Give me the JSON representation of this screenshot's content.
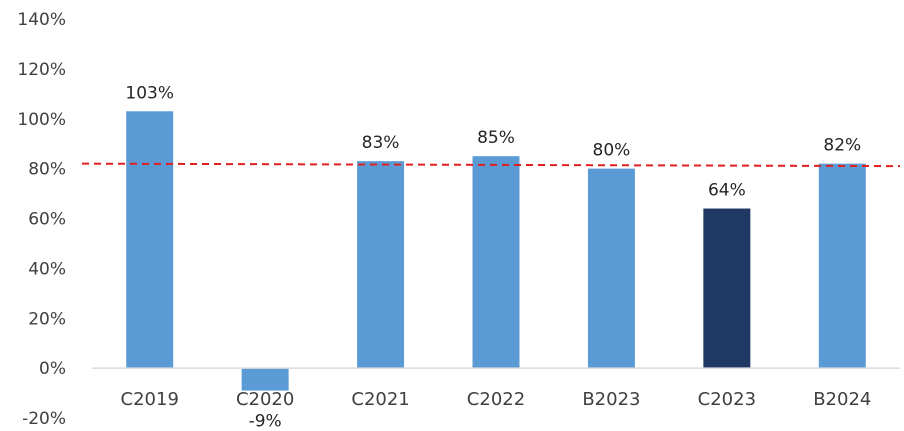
{
  "chart_data": {
    "type": "bar",
    "title": "",
    "xlabel": "",
    "ylabel": "",
    "categories": [
      "C2019",
      "C2020",
      "C2021",
      "C2022",
      "B2023",
      "C2023",
      "B2024"
    ],
    "values": [
      103,
      -9,
      83,
      85,
      80,
      64,
      82
    ],
    "data_labels": [
      "103%",
      "-9%",
      "83%",
      "85%",
      "80%",
      "64%",
      "82%"
    ],
    "y_ticks": [
      -20,
      0,
      20,
      40,
      60,
      80,
      100,
      120,
      140
    ],
    "y_tick_labels": [
      "-20%",
      "0%",
      "20%",
      "40%",
      "60%",
      "80%",
      "100%",
      "120%",
      "140%"
    ],
    "ylim": [
      -20,
      140
    ],
    "grid": false,
    "legend": "none",
    "reference_line": {
      "style": "dashed",
      "color": "#e02020",
      "start_value": 82,
      "end_value": 81
    },
    "colors": {
      "bar": "#5b9bd5",
      "highlight": "#203864",
      "axis": "#d9d9d9",
      "text": "#404040"
    },
    "highlight_category": "C2023"
  }
}
